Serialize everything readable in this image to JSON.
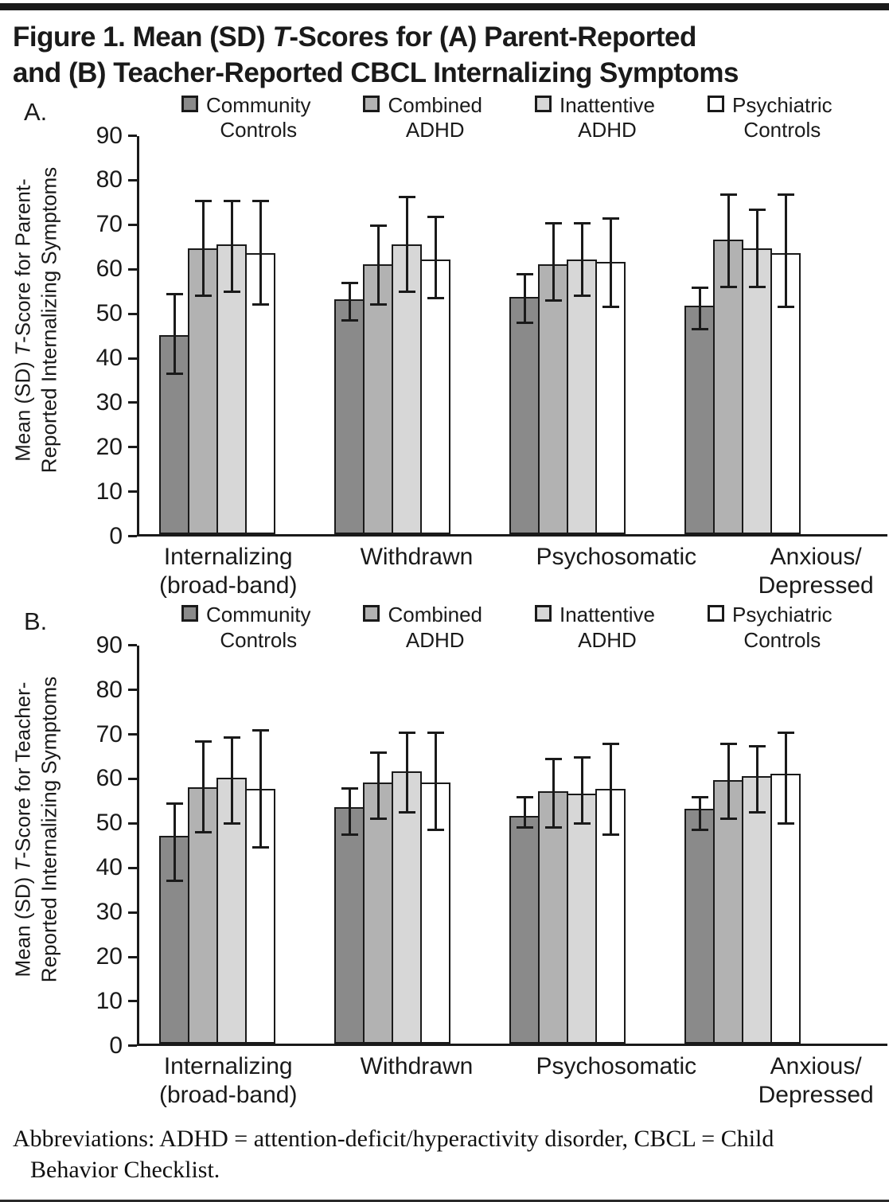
{
  "title": {
    "line1_pre": "Figure 1. Mean (SD) ",
    "line1_it": "T",
    "line1_post": "-Scores for (A) Parent-Reported",
    "line2": "and (B) Teacher-Reported CBCL Internalizing Symptoms"
  },
  "colors": {
    "community": "#8a8a8a",
    "combined": "#b2b2b2",
    "inattentive": "#d7d7d7",
    "psychiatric": "#ffffff",
    "ink": "#1a1a1a"
  },
  "chart_data": [
    {
      "panel_label": "A.",
      "type": "bar",
      "ylim": [
        0,
        90
      ],
      "ytick_step": 10,
      "yticks": [
        0,
        10,
        20,
        30,
        40,
        50,
        60,
        70,
        80,
        90
      ],
      "grid": false,
      "legend_position": "top",
      "ylabel_pre": "Mean (SD) ",
      "ylabel_it": "T",
      "ylabel_post": "-Score for Parent-",
      "ylabel_line2": "Reported Internalizing Symptoms",
      "categories": [
        "Internalizing\n(broad-band)",
        "Withdrawn",
        "Psychosomatic",
        "Anxious/\nDepressed"
      ],
      "series": [
        {
          "name": "Community\nControls",
          "color_key": "community",
          "values": [
            45,
            53,
            53.5,
            51.5
          ],
          "err_low": [
            36,
            48,
            47.5,
            46
          ],
          "err_high": [
            54.5,
            57,
            59,
            56
          ]
        },
        {
          "name": "Combined\nADHD",
          "color_key": "combined",
          "values": [
            64.5,
            61,
            61,
            66.5
          ],
          "err_low": [
            53.5,
            51.5,
            52.5,
            55.5
          ],
          "err_high": [
            75.5,
            70,
            70.5,
            77
          ]
        },
        {
          "name": "Inattentive\nADHD",
          "color_key": "inattentive",
          "values": [
            65.5,
            65.5,
            62,
            64.5
          ],
          "err_low": [
            54.5,
            54.5,
            53.5,
            55.5
          ],
          "err_high": [
            75.5,
            76.5,
            70.5,
            73.5
          ]
        },
        {
          "name": "Psychiatric\nControls",
          "color_key": "psychiatric",
          "values": [
            63.5,
            62,
            61.5,
            63.5
          ],
          "err_low": [
            51.5,
            53,
            51,
            51
          ],
          "err_high": [
            75.5,
            72,
            71.5,
            77
          ]
        }
      ]
    },
    {
      "panel_label": "B.",
      "type": "bar",
      "ylim": [
        0,
        90
      ],
      "ytick_step": 10,
      "yticks": [
        0,
        10,
        20,
        30,
        40,
        50,
        60,
        70,
        80,
        90
      ],
      "grid": false,
      "legend_position": "top",
      "ylabel_pre": "Mean (SD) ",
      "ylabel_it": "T",
      "ylabel_post": "-Score  for Teacher-",
      "ylabel_line2": "Reported Internalizing Symptoms",
      "categories": [
        "Internalizing\n(broad-band)",
        "Withdrawn",
        "Psychosomatic",
        "Anxious/\nDepressed"
      ],
      "series": [
        {
          "name": "Community\nControls",
          "color_key": "community",
          "values": [
            47,
            53.5,
            51.5,
            53
          ],
          "err_low": [
            36.5,
            47,
            48.5,
            48
          ],
          "err_high": [
            54.5,
            58,
            56,
            56
          ]
        },
        {
          "name": "Combined\nADHD",
          "color_key": "combined",
          "values": [
            58,
            59,
            57,
            59.5
          ],
          "err_low": [
            47.5,
            50.5,
            48.5,
            50.5
          ],
          "err_high": [
            68.5,
            66,
            64.5,
            68
          ]
        },
        {
          "name": "Inattentive\nADHD",
          "color_key": "inattentive",
          "values": [
            60,
            61.5,
            56.5,
            60.5
          ],
          "err_low": [
            49.5,
            52,
            49.5,
            52
          ],
          "err_high": [
            69.5,
            70.5,
            65,
            67.5
          ]
        },
        {
          "name": "Psychiatric\nControls",
          "color_key": "psychiatric",
          "values": [
            57.5,
            59,
            57.5,
            61
          ],
          "err_low": [
            44,
            48,
            47,
            49.5
          ],
          "err_high": [
            71,
            70.5,
            68,
            70.5
          ]
        }
      ]
    }
  ],
  "footnote": {
    "line1": "Abbreviations: ADHD = attention-deficit/hyperactivity disorder, CBCL = Child",
    "line2": "Behavior Checklist."
  }
}
